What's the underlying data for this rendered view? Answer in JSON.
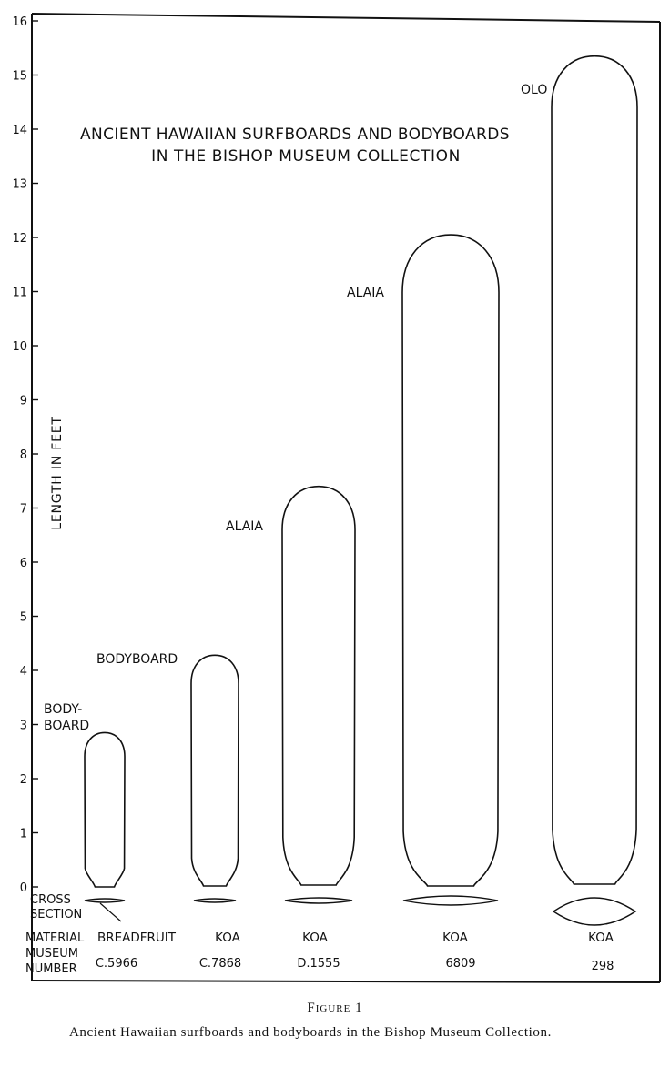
{
  "title_line1": "ANCIENT HAWAIIAN SURFBOARDS AND BODYBOARDS",
  "title_line2": "IN THE BISHOP MUSEUM COLLECTION",
  "y_axis_label": "LENGTH IN FEET",
  "y_ticks": [
    "0",
    "1",
    "2",
    "3",
    "4",
    "5",
    "6",
    "7",
    "8",
    "9",
    "10",
    "11",
    "12",
    "13",
    "14",
    "15",
    "16"
  ],
  "cross_section_label": [
    "CROSS",
    "SECTION"
  ],
  "row_labels": {
    "material": "MATERIAL",
    "museum": "MUSEUM",
    "number": "NUMBER"
  },
  "boards": [
    {
      "type_lines": [
        "BODY-",
        "BOARD"
      ],
      "length_ft": 2.85,
      "material": "BREADFRUIT",
      "museum_number": "C.5966"
    },
    {
      "type_lines": [
        "BODYBOARD"
      ],
      "length_ft": 4.28,
      "material": "KOA",
      "museum_number": "C.7868"
    },
    {
      "type_lines": [
        "ALAIA"
      ],
      "length_ft": 7.4,
      "material": "KOA",
      "museum_number": "D.1555"
    },
    {
      "type_lines": [
        "ALAIA"
      ],
      "length_ft": 12.05,
      "material": "KOA",
      "museum_number": "6809"
    },
    {
      "type_lines": [
        "OLO"
      ],
      "length_ft": 15.35,
      "material": "KOA",
      "museum_number": "298"
    }
  ],
  "caption": {
    "label": "Figure 1",
    "text": "Ancient Hawaiian surfboards and bodyboards in the Bishop Museum Collection."
  }
}
